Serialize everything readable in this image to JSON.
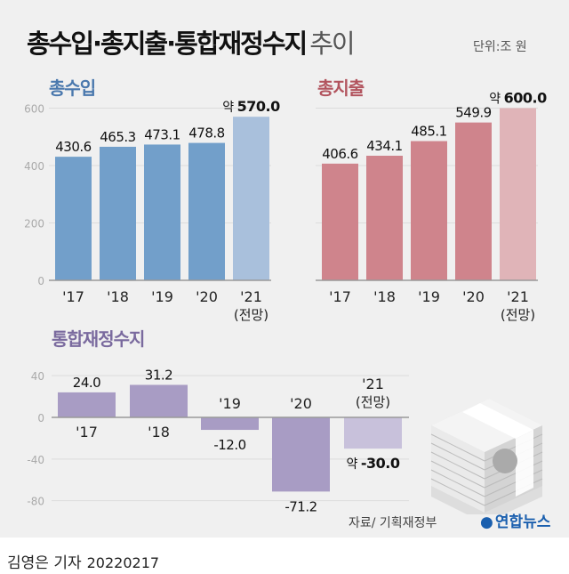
{
  "title": {
    "main": "총수입·총지출·통합재정수지",
    "sub": "추이"
  },
  "unit": "단위:조 원",
  "source": "자료/ 기획재정부",
  "logo": "연합뉴스",
  "footer": {
    "author": "김영은 기자",
    "date": "20220217"
  },
  "icon": "money-stack-icon",
  "chart_data": [
    {
      "type": "bar",
      "title": "총수입",
      "categories": [
        "'17",
        "'18",
        "'19",
        "'20",
        "'21"
      ],
      "category_notes": [
        "",
        "",
        "",
        "",
        "(전망)"
      ],
      "values": [
        430.6,
        465.3,
        473.1,
        478.8,
        570.0
      ],
      "value_labels": [
        "430.6",
        "465.3",
        "473.1",
        "478.8",
        "570.0"
      ],
      "value_prefix": [
        "",
        "",
        "",
        "",
        "약"
      ],
      "yticks": [
        "600",
        "400",
        "200",
        "0"
      ],
      "ylim": [
        0,
        600
      ],
      "grid": true,
      "colors": {
        "actual": "#729fca",
        "forecast": "#a9c0dc",
        "title": "#4a78ad"
      }
    },
    {
      "type": "bar",
      "title": "총지출",
      "categories": [
        "'17",
        "'18",
        "'19",
        "'20",
        "'21"
      ],
      "category_notes": [
        "",
        "",
        "",
        "",
        "(전망)"
      ],
      "values": [
        406.6,
        434.1,
        485.1,
        549.9,
        600.0
      ],
      "value_labels": [
        "406.6",
        "434.1",
        "485.1",
        "549.9",
        "600.0"
      ],
      "value_prefix": [
        "",
        "",
        "",
        "",
        "약"
      ],
      "ylim": [
        0,
        600
      ],
      "grid": true,
      "colors": {
        "actual": "#cf848c",
        "forecast": "#e0b4b8",
        "title": "#b2545e"
      }
    },
    {
      "type": "bar",
      "title": "통합재정수지",
      "categories": [
        "'17",
        "'18",
        "'19",
        "'20",
        "'21"
      ],
      "category_notes": [
        "",
        "",
        "",
        "",
        "(전망)"
      ],
      "values": [
        24.0,
        31.2,
        -12.0,
        -71.2,
        -30.0
      ],
      "value_labels": [
        "24.0",
        "31.2",
        "-12.0",
        "-71.2",
        "-30.0"
      ],
      "value_prefix": [
        "",
        "",
        "",
        "",
        "약"
      ],
      "yticks": [
        "40",
        "0",
        "-40",
        "-80"
      ],
      "ylim": [
        -80,
        40
      ],
      "grid": true,
      "colors": {
        "actual": "#a89cc4",
        "forecast": "#c8c1db",
        "title": "#7a6a9e"
      }
    }
  ]
}
